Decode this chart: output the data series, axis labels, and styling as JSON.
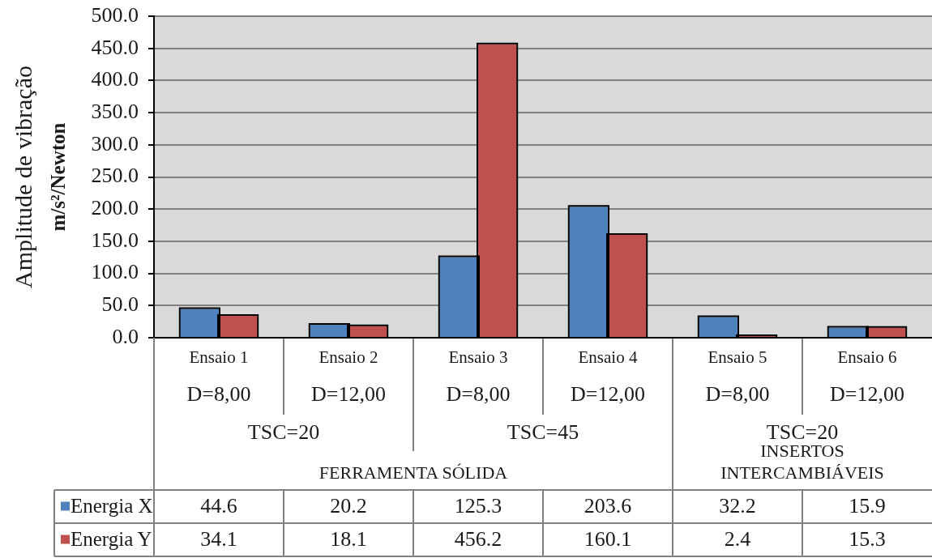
{
  "chart_data": {
    "type": "bar",
    "ylabel": "Amplitude de vibração\nm/s²/Newton",
    "categories": [
      "Ensaio 1\nD=8,00",
      "Ensaio 2\nD=12,00",
      "Ensaio 3\nD=8,00",
      "Ensaio 4\nD=12,00",
      "Ensaio 5\nD=8,00",
      "Ensaio 6\nD=12,00"
    ],
    "series": [
      {
        "name": "Energia X",
        "color": "#4f81bd",
        "values": [
          44.6,
          20.2,
          125.3,
          203.6,
          32.2,
          15.9
        ]
      },
      {
        "name": "Energia Y",
        "color": "#c0504d",
        "values": [
          34.1,
          18.1,
          456.2,
          160.1,
          2.4,
          15.3
        ]
      }
    ],
    "ylim": [
      0,
      500
    ],
    "yticks": [
      {
        "value": 0,
        "label": "0.0"
      },
      {
        "value": 50,
        "label": "50.0"
      },
      {
        "value": 100,
        "label": "100.0"
      },
      {
        "value": 150,
        "label": "150.0"
      },
      {
        "value": 200,
        "label": "200.0"
      },
      {
        "value": 250,
        "label": "250.0"
      },
      {
        "value": 300,
        "label": "300.0"
      },
      {
        "value": 350,
        "label": "350.0"
      },
      {
        "value": 400,
        "label": "400.0"
      },
      {
        "value": 450,
        "label": "450.0"
      },
      {
        "value": 500,
        "label": "500.0"
      }
    ],
    "grid": "y",
    "legend": "bottom left",
    "data_labels": true,
    "annotations": [
      "TSC=20",
      "TSC=45",
      "TSC=20",
      "FERRAMENTA SÓLIDA",
      "INSERTOS\nINTERCAMBIÁVEIS"
    ]
  }
}
